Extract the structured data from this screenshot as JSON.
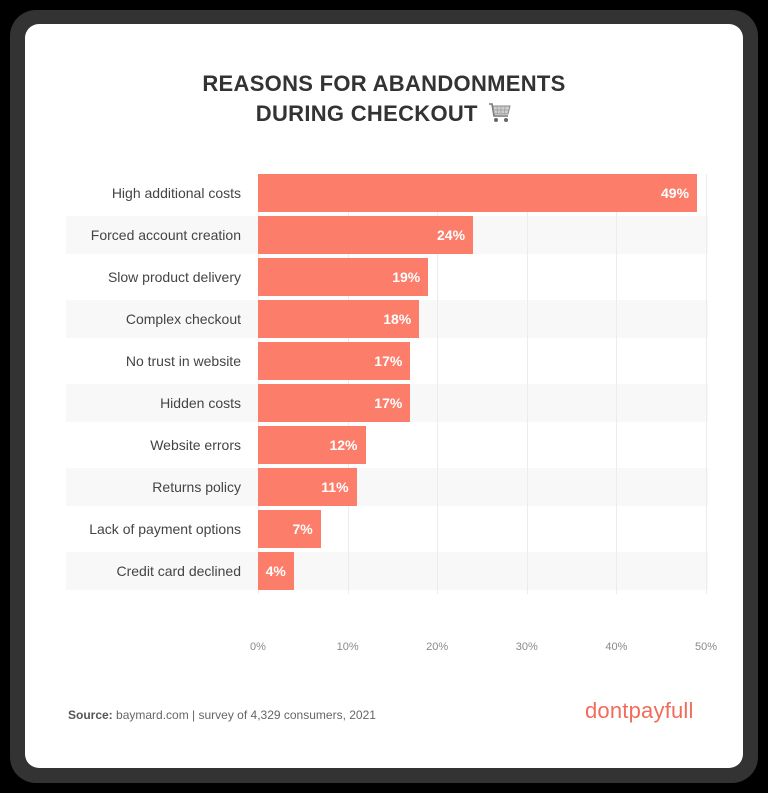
{
  "title": {
    "line1": "REASONS FOR ABANDONMENTS",
    "line2": "DURING CHECKOUT",
    "icon": "shopping-cart-icon"
  },
  "chart_data": {
    "type": "bar",
    "orientation": "horizontal",
    "title": "REASONS FOR ABANDONMENTS DURING CHECKOUT",
    "categories": [
      "High additional costs",
      "Forced account creation",
      "Slow product delivery",
      "Complex checkout",
      "No trust in website",
      "Hidden costs",
      "Website errors",
      "Returns policy",
      "Lack of payment options",
      "Credit card declined"
    ],
    "values": [
      49,
      24,
      19,
      18,
      17,
      17,
      12,
      11,
      7,
      4
    ],
    "value_labels": [
      "49%",
      "24%",
      "19%",
      "18%",
      "17%",
      "17%",
      "12%",
      "11%",
      "7%",
      "4%"
    ],
    "xlabel": "",
    "ylabel": "",
    "xlim": [
      0,
      50
    ],
    "x_ticks": [
      "0%",
      "10%",
      "20%",
      "30%",
      "40%",
      "50%"
    ],
    "grid": true,
    "legend": null,
    "bar_color": "#fb7d6a"
  },
  "footer": {
    "source_label": "Source:",
    "source_text": " baymard.com | survey of 4,329 consumers, 2021",
    "brand": "dontpayfull",
    "brand_color": "#f26b5b"
  }
}
